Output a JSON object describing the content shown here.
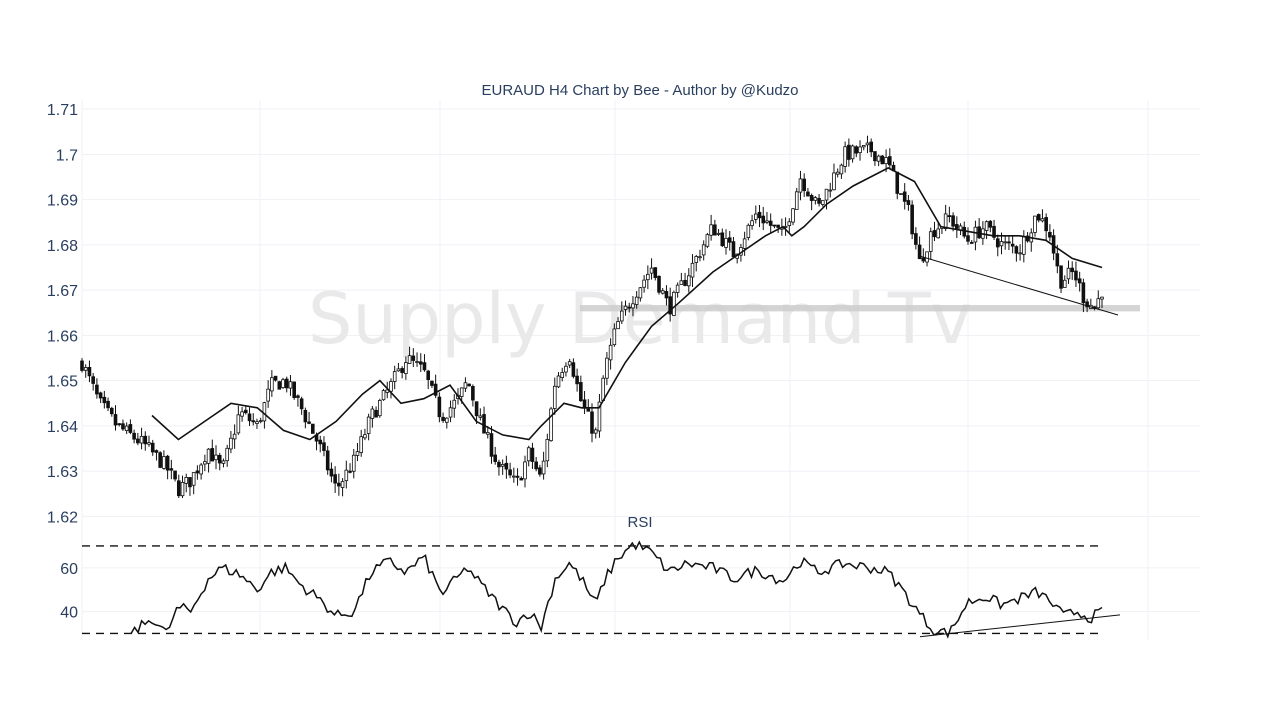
{
  "chart_data": {
    "type": "candlestick",
    "title": "EURAUD H4 Chart by Bee - Author by @Kudzo",
    "watermark": "Supply Demand Tv",
    "grid": true,
    "price_axis": {
      "ylim": [
        1.617,
        1.712
      ],
      "ticks": [
        1.62,
        1.63,
        1.64,
        1.65,
        1.66,
        1.67,
        1.68,
        1.69,
        1.7,
        1.71
      ],
      "tick_labels": [
        "1.62",
        "1.63",
        "1.64",
        "1.65",
        "1.66",
        "1.67",
        "1.68",
        "1.69",
        "1.7",
        "1.71"
      ]
    },
    "candle_count": 275,
    "close_path": [
      [
        0,
        1.654
      ],
      [
        10,
        1.645
      ],
      [
        20,
        1.64
      ],
      [
        35,
        1.636
      ],
      [
        48,
        1.631
      ],
      [
        55,
        1.626
      ],
      [
        62,
        1.628
      ],
      [
        72,
        1.635
      ],
      [
        80,
        1.63
      ],
      [
        90,
        1.643
      ],
      [
        100,
        1.64
      ],
      [
        108,
        1.649
      ],
      [
        116,
        1.65
      ],
      [
        125,
        1.644
      ],
      [
        135,
        1.636
      ],
      [
        145,
        1.626
      ],
      [
        155,
        1.632
      ],
      [
        165,
        1.642
      ],
      [
        175,
        1.648
      ],
      [
        185,
        1.655
      ],
      [
        195,
        1.652
      ],
      [
        205,
        1.642
      ],
      [
        215,
        1.646
      ],
      [
        220,
        1.65
      ],
      [
        228,
        1.64
      ],
      [
        238,
        1.631
      ],
      [
        248,
        1.627
      ],
      [
        255,
        1.634
      ],
      [
        262,
        1.628
      ],
      [
        270,
        1.65
      ],
      [
        278,
        1.656
      ],
      [
        285,
        1.645
      ],
      [
        293,
        1.638
      ],
      [
        298,
        1.652
      ],
      [
        305,
        1.662
      ],
      [
        315,
        1.669
      ],
      [
        325,
        1.675
      ],
      [
        335,
        1.666
      ],
      [
        345,
        1.673
      ],
      [
        360,
        1.684
      ],
      [
        372,
        1.678
      ],
      [
        385,
        1.687
      ],
      [
        400,
        1.682
      ],
      [
        410,
        1.695
      ],
      [
        420,
        1.688
      ],
      [
        435,
        1.7
      ],
      [
        450,
        1.701
      ],
      [
        460,
        1.698
      ],
      [
        462,
        1.696
      ],
      [
        468,
        1.69
      ],
      [
        472,
        1.687
      ],
      [
        478,
        1.676
      ],
      [
        485,
        1.683
      ],
      [
        495,
        1.686
      ],
      [
        505,
        1.681
      ],
      [
        515,
        1.684
      ],
      [
        525,
        1.68
      ],
      [
        535,
        1.679
      ],
      [
        545,
        1.687
      ],
      [
        552,
        1.683
      ],
      [
        558,
        1.672
      ],
      [
        566,
        1.674
      ],
      [
        572,
        1.668
      ],
      [
        578,
        1.666
      ],
      [
        582,
        1.67
      ]
    ],
    "moving_average": [
      [
        0,
        1.642
      ],
      [
        12,
        1.64
      ],
      [
        25,
        1.636
      ],
      [
        40,
        1.633
      ],
      [
        55,
        1.637
      ],
      [
        70,
        1.641
      ],
      [
        85,
        1.645
      ],
      [
        100,
        1.644
      ],
      [
        115,
        1.639
      ],
      [
        130,
        1.637
      ],
      [
        145,
        1.641
      ],
      [
        160,
        1.647
      ],
      [
        170,
        1.65
      ],
      [
        182,
        1.645
      ],
      [
        195,
        1.646
      ],
      [
        210,
        1.649
      ],
      [
        225,
        1.641
      ],
      [
        240,
        1.638
      ],
      [
        255,
        1.637
      ],
      [
        262,
        1.64
      ],
      [
        275,
        1.645
      ],
      [
        285,
        1.644
      ],
      [
        295,
        1.644
      ],
      [
        310,
        1.654
      ],
      [
        325,
        1.662
      ],
      [
        340,
        1.667
      ],
      [
        360,
        1.674
      ],
      [
        375,
        1.678
      ],
      [
        390,
        1.682
      ],
      [
        400,
        1.684
      ],
      [
        405,
        1.682
      ],
      [
        412,
        1.684
      ],
      [
        425,
        1.689
      ],
      [
        440,
        1.693
      ],
      [
        460,
        1.697
      ],
      [
        475,
        1.694
      ],
      [
        490,
        1.684
      ],
      [
        505,
        1.683
      ],
      [
        520,
        1.682
      ],
      [
        535,
        1.682
      ],
      [
        550,
        1.681
      ],
      [
        565,
        1.677
      ],
      [
        582,
        1.675
      ]
    ],
    "support_zone": [
      1.6653,
      1.6667
    ],
    "trendline": {
      "from": [
        484,
        1.6775
      ],
      "to": [
        592,
        1.6645
      ]
    },
    "rsi": {
      "label": "RSI",
      "ylim": [
        27,
        75
      ],
      "ticks": [
        40,
        60
      ],
      "tick_labels": [
        "40",
        "60"
      ],
      "bands": [
        70,
        30
      ],
      "values": [
        [
          0,
          31
        ],
        [
          10,
          30
        ],
        [
          20,
          32
        ],
        [
          30,
          31
        ],
        [
          40,
          37
        ],
        [
          48,
          30
        ],
        [
          55,
          42
        ],
        [
          62,
          40
        ],
        [
          72,
          55
        ],
        [
          80,
          60
        ],
        [
          90,
          57
        ],
        [
          100,
          50
        ],
        [
          108,
          58
        ],
        [
          116,
          60
        ],
        [
          125,
          52
        ],
        [
          135,
          46
        ],
        [
          145,
          38
        ],
        [
          155,
          40
        ],
        [
          165,
          58
        ],
        [
          175,
          63
        ],
        [
          185,
          58
        ],
        [
          195,
          65
        ],
        [
          205,
          48
        ],
        [
          215,
          56
        ],
        [
          220,
          60
        ],
        [
          228,
          52
        ],
        [
          238,
          43
        ],
        [
          248,
          35
        ],
        [
          255,
          40
        ],
        [
          262,
          33
        ],
        [
          270,
          55
        ],
        [
          278,
          62
        ],
        [
          285,
          55
        ],
        [
          293,
          43
        ],
        [
          298,
          54
        ],
        [
          305,
          64
        ],
        [
          315,
          71
        ],
        [
          325,
          67
        ],
        [
          335,
          58
        ],
        [
          345,
          62
        ],
        [
          360,
          60
        ],
        [
          372,
          55
        ],
        [
          385,
          59
        ],
        [
          400,
          54
        ],
        [
          410,
          63
        ],
        [
          420,
          58
        ],
        [
          435,
          62
        ],
        [
          450,
          60
        ],
        [
          460,
          58
        ],
        [
          468,
          50
        ],
        [
          475,
          42
        ],
        [
          485,
          32
        ],
        [
          495,
          30
        ],
        [
          505,
          44
        ],
        [
          515,
          47
        ],
        [
          525,
          43
        ],
        [
          535,
          46
        ],
        [
          545,
          49
        ],
        [
          552,
          45
        ],
        [
          560,
          38
        ],
        [
          568,
          40
        ],
        [
          575,
          37
        ],
        [
          582,
          40
        ]
      ],
      "trendline": {
        "from": [
          484,
          28.5
        ],
        "to": [
          592,
          38.5
        ]
      }
    }
  }
}
